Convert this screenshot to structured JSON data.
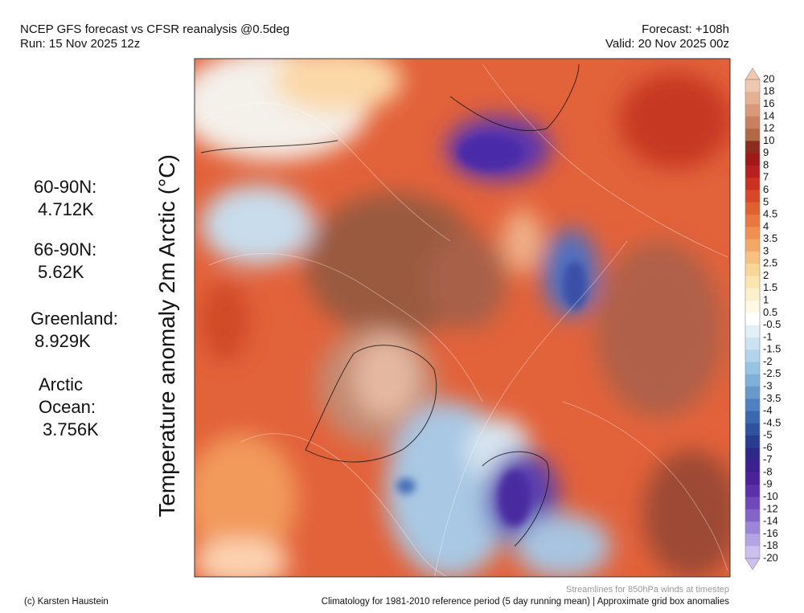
{
  "header": {
    "left": [
      "NCEP GFS forecast vs CFSR reanalysis @0.5deg",
      "Run: 15 Nov 2025 12z"
    ],
    "right": [
      "Forecast: +108h",
      "Valid: 20 Nov 2025 00z"
    ]
  },
  "axis_label": "Temperature anomaly 2m Arctic (°C)",
  "stats": [
    {
      "label": [
        "60-90N:"
      ],
      "value": "4.712K"
    },
    {
      "label": [
        "66-90N:"
      ],
      "value": "5.62K"
    },
    {
      "label": [
        "Greenland:"
      ],
      "value": "8.929K"
    },
    {
      "label": [
        "Arctic",
        "Ocean:"
      ],
      "value": "3.756K"
    }
  ],
  "colorbar": {
    "labels": [
      "20",
      "18",
      "16",
      "14",
      "12",
      "10",
      "9",
      "8",
      "7",
      "6",
      "5",
      "4.5",
      "4",
      "3.5",
      "3",
      "2.5",
      "2",
      "1.5",
      "1",
      "0.5",
      "-0.5",
      "-1",
      "-1.5",
      "-2",
      "-2.5",
      "-3",
      "-3.5",
      "-4",
      "-4.5",
      "-5",
      "-6",
      "-7",
      "-8",
      "-9",
      "-10",
      "-12",
      "-14",
      "-16",
      "-18",
      "-20"
    ],
    "colors": [
      "#f0c8b0",
      "#e6b095",
      "#d9987a",
      "#c88060",
      "#b06845",
      "#8b2c1e",
      "#a01818",
      "#b82020",
      "#cc3020",
      "#d84828",
      "#e06030",
      "#e87840",
      "#f09050",
      "#f4a868",
      "#f8c080",
      "#fad598",
      "#fce4b0",
      "#fdf0cc",
      "#fef8e4",
      "#ffffff",
      "#e4f0f8",
      "#cce2f2",
      "#b4d4ec",
      "#98c4e4",
      "#80b0da",
      "#6898cc",
      "#5080c0",
      "#3c68b0",
      "#3050a0",
      "#283c90",
      "#302888",
      "#3c2090",
      "#4c2098",
      "#5c30a8",
      "#7048b8",
      "#8464c8",
      "#9c84d8",
      "#b4a4e4",
      "#ccc0f0"
    ]
  },
  "footer": {
    "note": "Streamlines for 850hPa winds at timestep",
    "credit": "(c) Karsten Haustein",
    "reference": "Climatology for 1981-2010 reference period (5 day running mean) | Approximate grid box anomalies"
  }
}
